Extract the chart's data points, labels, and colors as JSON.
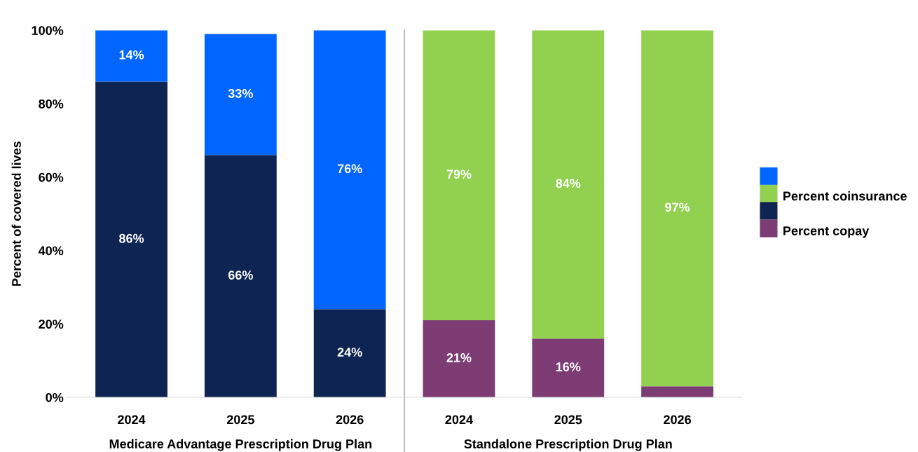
{
  "chart_data": {
    "type": "bar",
    "stacked": true,
    "ylabel": "Percent of covered lives",
    "categories": [
      "2024",
      "2025",
      "2026",
      "2024",
      "2025",
      "2026"
    ],
    "series": [
      {
        "name": "Percent copay",
        "colors": [
          "#0e2452",
          "#0e2452",
          "#0e2452",
          "#7d3c74",
          "#7d3c74",
          "#7d3c74"
        ],
        "values": [
          86,
          66,
          24,
          21,
          16,
          3
        ],
        "value_labels": [
          "86%",
          "66%",
          "24%",
          "21%",
          "16%",
          null
        ]
      },
      {
        "name": "Percent coinsurance",
        "colors": [
          "#0066ff",
          "#0066ff",
          "#0066ff",
          "#92d050",
          "#92d050",
          "#92d050"
        ],
        "values": [
          14,
          33,
          76,
          79,
          84,
          97
        ],
        "value_labels": [
          "14%",
          "33%",
          "76%",
          "79%",
          "84%",
          "97%"
        ]
      }
    ],
    "ylim": [
      0,
      100
    ],
    "yticks": [
      {
        "value": 0,
        "label": "0%"
      },
      {
        "value": 20,
        "label": "20%"
      },
      {
        "value": 40,
        "label": "40%"
      },
      {
        "value": 60,
        "label": "60%"
      },
      {
        "value": 80,
        "label": "80%"
      },
      {
        "value": 100,
        "label": "100%"
      }
    ],
    "annotations": [
      "Medicare Advantage Prescription Drug Plan",
      "Standalone Prescription Drug Plan"
    ],
    "grid": false,
    "legend": "right"
  }
}
